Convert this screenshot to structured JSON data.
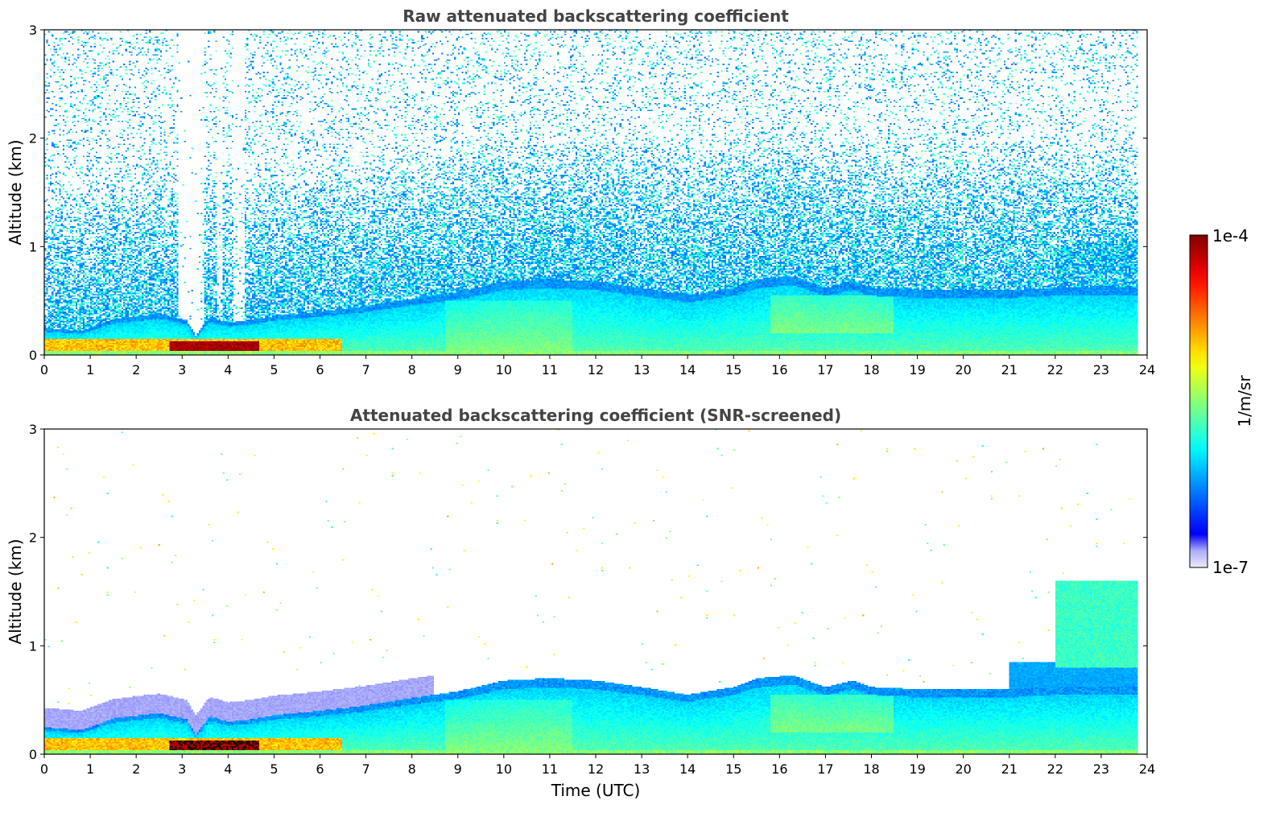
{
  "chart_data": [
    {
      "type": "heatmap",
      "title": "Raw attenuated backscattering coefficient",
      "xlabel": "",
      "ylabel": "Altitude (km)",
      "xlim": [
        0,
        24
      ],
      "ylim": [
        0,
        3
      ],
      "xticks": [
        "0",
        "1",
        "2",
        "3",
        "4",
        "5",
        "6",
        "7",
        "8",
        "9",
        "10",
        "11",
        "12",
        "13",
        "14",
        "15",
        "16",
        "17",
        "18",
        "19",
        "20",
        "21",
        "22",
        "23",
        "24"
      ],
      "yticks": [
        "0",
        "1",
        "2",
        "3"
      ],
      "screened": false
    },
    {
      "type": "heatmap",
      "title": "Attenuated backscattering coefficient (SNR-screened)",
      "xlabel": "Time (UTC)",
      "ylabel": "Altitude (km)",
      "xlim": [
        0,
        24
      ],
      "ylim": [
        0,
        3
      ],
      "xticks": [
        "0",
        "1",
        "2",
        "3",
        "4",
        "5",
        "6",
        "7",
        "8",
        "9",
        "10",
        "11",
        "12",
        "13",
        "14",
        "15",
        "16",
        "17",
        "18",
        "19",
        "20",
        "21",
        "22",
        "23",
        "24"
      ],
      "yticks": [
        "0",
        "1",
        "2",
        "3"
      ],
      "screened": true
    }
  ],
  "colorbar": {
    "label": "1/m/sr",
    "max_label": "1e-4",
    "min_label": "1e-7",
    "scale": "log",
    "range": [
      1e-07,
      0.0001
    ],
    "colormap": "jet"
  },
  "boundary_layer_top_km": {
    "t": [
      0,
      0.8,
      1.5,
      2.5,
      3.1,
      3.3,
      3.6,
      4.0,
      4.5,
      5.0,
      6.0,
      7.0,
      8.0,
      9.0,
      10.0,
      11.0,
      12.0,
      13.0,
      14.0,
      15.0,
      15.5,
      16.3,
      17.0,
      17.6,
      18.0,
      19.0,
      20.0,
      21.0,
      22.0,
      23.0,
      23.8
    ],
    "h": [
      0.25,
      0.22,
      0.33,
      0.38,
      0.32,
      0.18,
      0.35,
      0.3,
      0.32,
      0.36,
      0.4,
      0.45,
      0.52,
      0.58,
      0.68,
      0.7,
      0.68,
      0.62,
      0.55,
      0.62,
      0.7,
      0.73,
      0.62,
      0.68,
      0.62,
      0.6,
      0.6,
      0.6,
      0.62,
      0.62,
      0.62
    ]
  }
}
